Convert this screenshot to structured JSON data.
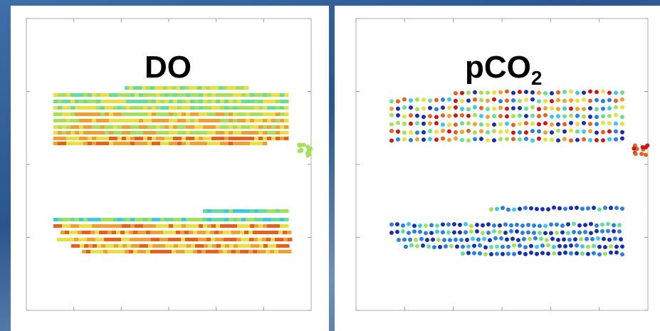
{
  "panels": [
    {
      "label": "DO"
    },
    {
      "label": "pCO",
      "subscript": "2"
    }
  ]
}
